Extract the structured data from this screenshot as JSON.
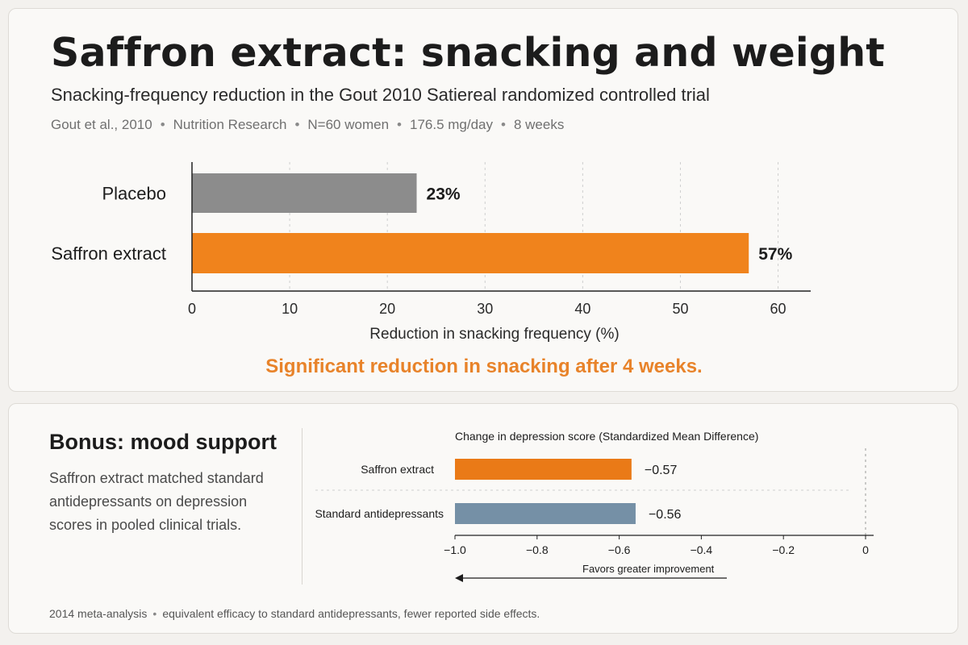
{
  "header": {
    "title": "Saffron extract: snacking and weight",
    "subtitle": "Snacking-frequency reduction in the Gout 2010 Satiereal randomized controlled trial",
    "meta": [
      "Gout et al., 2010",
      "Nutrition Research",
      "N=60 women",
      "176.5 mg/day",
      "8 weeks"
    ],
    "meta_separator": "•"
  },
  "callout": "Significant reduction in snacking after 4 weeks.",
  "bonus": {
    "title": "Bonus: mood support",
    "text": "Saffron extract matched standard antidepressants on depression scores in pooled clinical trials."
  },
  "footer": {
    "source": "2014 meta-analysis",
    "separator": "•",
    "note": "equivalent efficacy to standard antidepressants, fewer reported side effects."
  },
  "colors": {
    "placebo": "#8c8c8c",
    "saffron": "#f0831c",
    "saffron_mood": "#ea7a17",
    "antidepressants": "#7590a6",
    "accent_text": "#e8832a",
    "axis": "#222222",
    "grid": "#cfcfcf"
  },
  "chart_data": [
    {
      "type": "bar",
      "orientation": "horizontal",
      "categories": [
        "Placebo",
        "Saffron extract"
      ],
      "values": [
        23,
        57
      ],
      "value_labels": [
        "23%",
        "57%"
      ],
      "xlabel": "Reduction in snacking frequency (%)",
      "xticks": [
        0,
        10,
        20,
        30,
        40,
        50,
        60
      ],
      "xlim": [
        0,
        64
      ],
      "grid": "vertical dashed"
    },
    {
      "type": "bar",
      "orientation": "horizontal",
      "title": "Change in depression score (Standardized Mean Difference)",
      "categories": [
        "Saffron extract",
        "Standard antidepressants"
      ],
      "values": [
        -0.57,
        -0.56
      ],
      "value_labels": [
        "−0.57",
        "−0.56"
      ],
      "xticks": [
        -1.0,
        -0.8,
        -0.6,
        -0.4,
        -0.2,
        0
      ],
      "xtick_labels": [
        "−1.0",
        "−0.8",
        "−0.6",
        "−0.4",
        "−0.2",
        "0"
      ],
      "xlim": [
        -1.0,
        0
      ],
      "annotation": "Favors greater improvement"
    }
  ]
}
